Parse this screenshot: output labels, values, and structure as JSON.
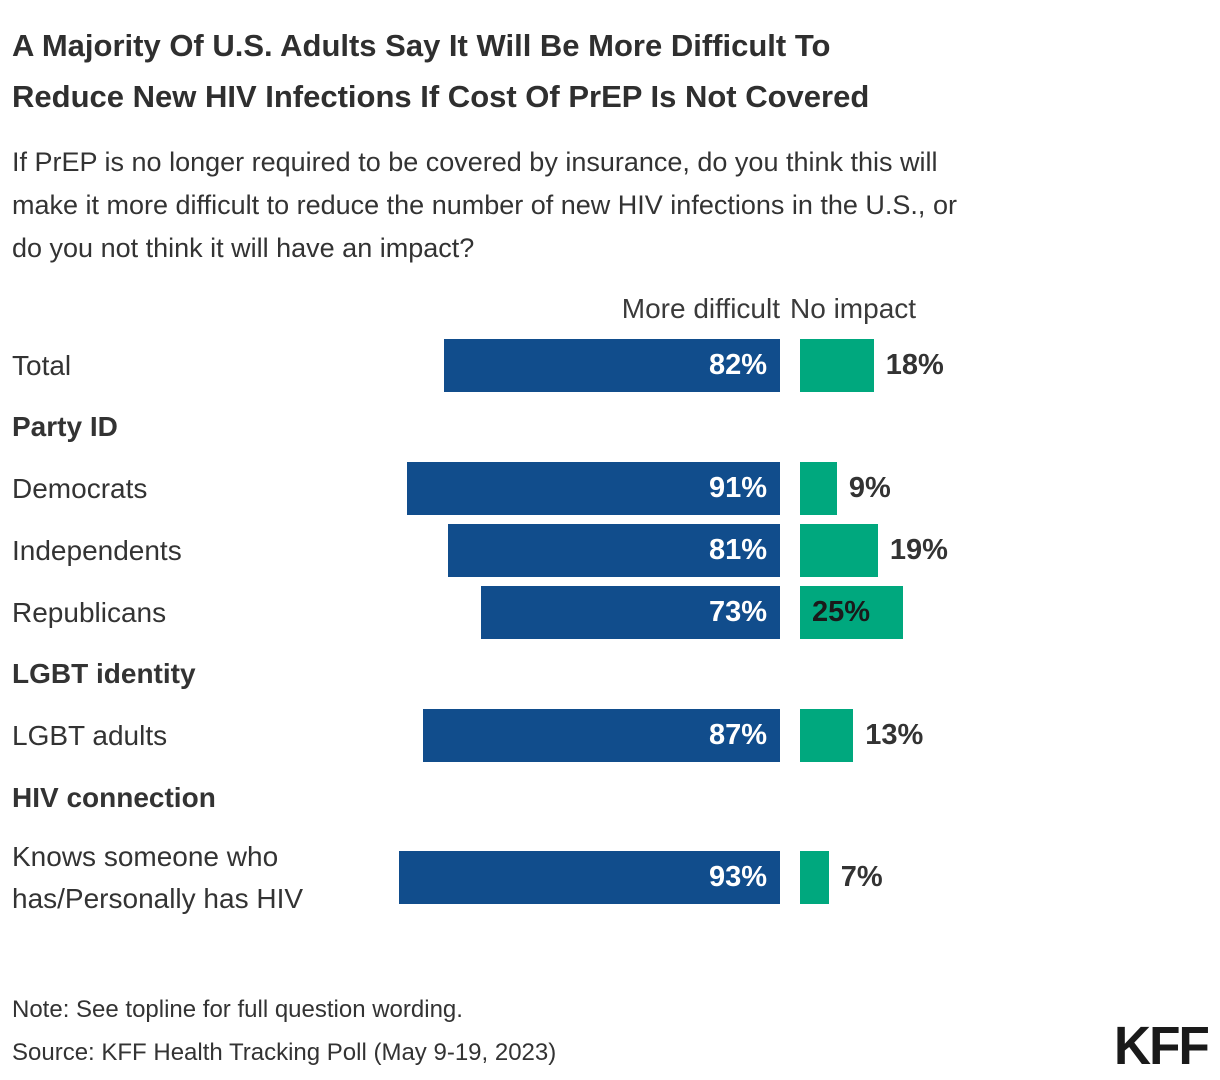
{
  "title_lines": [
    "A Majority Of U.S. Adults Say It Will Be More Difficult To",
    "Reduce New HIV Infections If Cost Of PrEP Is Not Covered"
  ],
  "subtitle_lines": [
    "If PrEP is no longer required to be covered by insurance, do you think this will",
    "make it more difficult to reduce the number of new HIV infections in the U.S., or",
    "do you not think it will have an impact?"
  ],
  "columns": {
    "more_difficult": "More difficult",
    "no_impact": "No impact"
  },
  "chart_data": {
    "type": "bar",
    "orientation": "horizontal",
    "unit": "%",
    "value_range": [
      0,
      100
    ],
    "grid": false,
    "legend_position": "top-as-column-headers",
    "series_names": [
      "More difficult",
      "No impact"
    ],
    "series_colors": [
      "#114D8C",
      "#00A87E"
    ],
    "rows": [
      {
        "kind": "bar",
        "label": "Total",
        "more_difficult": 82,
        "no_impact": 18
      },
      {
        "kind": "section",
        "label": "Party ID"
      },
      {
        "kind": "bar",
        "label": "Democrats",
        "more_difficult": 91,
        "no_impact": 9
      },
      {
        "kind": "bar",
        "label": "Independents",
        "more_difficult": 81,
        "no_impact": 19
      },
      {
        "kind": "bar",
        "label": "Republicans",
        "more_difficult": 73,
        "no_impact": 25
      },
      {
        "kind": "section",
        "label": "LGBT identity"
      },
      {
        "kind": "bar",
        "label": "LGBT adults",
        "more_difficult": 87,
        "no_impact": 13
      },
      {
        "kind": "section",
        "label": "HIV connection",
        "tall": true
      },
      {
        "kind": "bar",
        "label": "Knows someone who has/Personally has HIV",
        "label_lines": [
          "Knows someone who",
          "has/Personally has HIV"
        ],
        "more_difficult": 93,
        "no_impact": 7
      }
    ]
  },
  "note": "Note: See topline for full question wording.",
  "source": "Source: KFF Health Tracking Poll (May 9-19, 2023)",
  "logo": "KFF",
  "colors": {
    "more_difficult_bar": "#114D8C",
    "no_impact_bar": "#00A87E",
    "text": "#333333",
    "value_label_on_blue": "#ffffff",
    "value_label_dark": "#1a1a1a"
  }
}
